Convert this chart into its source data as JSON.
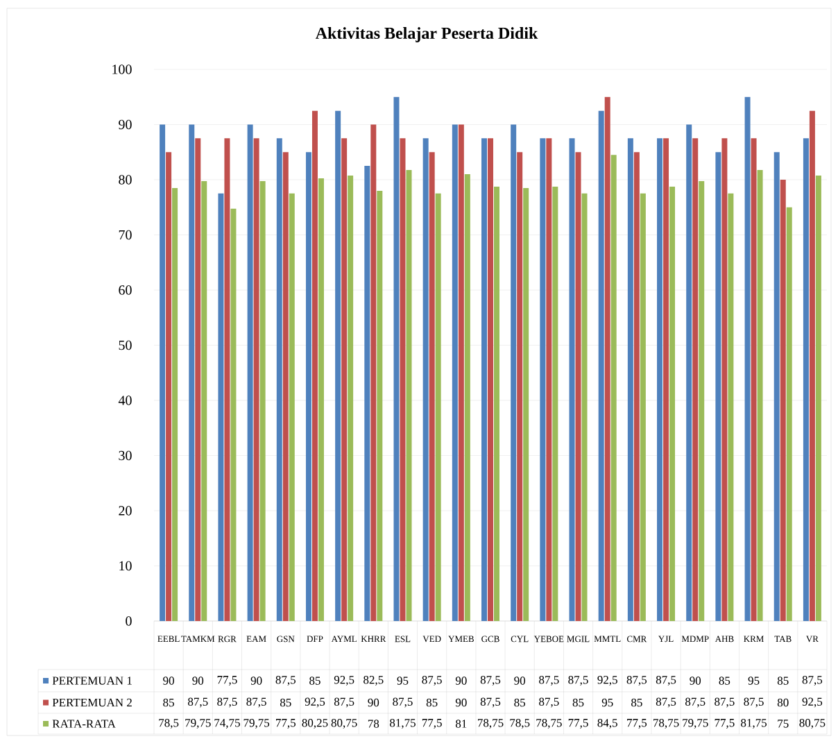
{
  "chart_data": {
    "type": "bar",
    "title": "Aktivitas Belajar Peserta Didik",
    "categories": [
      "EEBL",
      "TAMKM",
      "RGR",
      "EAM",
      "GSN",
      "DFP",
      "AYML",
      "KHRR",
      "ESL",
      "VED",
      "YMEB",
      "GCB",
      "CYL",
      "YEBOE",
      "MGIL",
      "MMTL",
      "CMR",
      "YJL",
      "MDMP",
      "AHB",
      "KRM",
      "TAB",
      "VR"
    ],
    "series": [
      {
        "name": "PERTEMUAN 1",
        "color": "#4f81bd",
        "values": [
          90,
          90,
          77.5,
          90,
          87.5,
          85,
          92.5,
          82.5,
          95,
          87.5,
          90,
          87.5,
          90,
          87.5,
          87.5,
          92.5,
          87.5,
          87.5,
          90,
          85,
          95,
          85,
          87.5
        ],
        "value_labels": [
          "90",
          "90",
          "77,5",
          "90",
          "87,5",
          "85",
          "92,5",
          "82,5",
          "95",
          "87,5",
          "90",
          "87,5",
          "90",
          "87,5",
          "87,5",
          "92,5",
          "87,5",
          "87,5",
          "90",
          "85",
          "95",
          "85",
          "87,5"
        ]
      },
      {
        "name": "PERTEMUAN 2",
        "color": "#c0504d",
        "values": [
          85,
          87.5,
          87.5,
          87.5,
          85,
          92.5,
          87.5,
          90,
          87.5,
          85,
          90,
          87.5,
          85,
          87.5,
          85,
          95,
          85,
          87.5,
          87.5,
          87.5,
          87.5,
          80,
          92.5
        ],
        "value_labels": [
          "85",
          "87,5",
          "87,5",
          "87,5",
          "85",
          "92,5",
          "87,5",
          "90",
          "87,5",
          "85",
          "90",
          "87,5",
          "85",
          "87,5",
          "85",
          "95",
          "85",
          "87,5",
          "87,5",
          "87,5",
          "87,5",
          "80",
          "92,5"
        ]
      },
      {
        "name": "RATA-RATA",
        "color": "#9bbb59",
        "values": [
          78.5,
          79.75,
          74.75,
          79.75,
          77.5,
          80.25,
          80.75,
          78,
          81.75,
          77.5,
          81,
          78.75,
          78.5,
          78.75,
          77.5,
          84.5,
          77.5,
          78.75,
          79.75,
          77.5,
          81.75,
          75,
          80.75
        ],
        "value_labels": [
          "78,5",
          "79,75",
          "74,75",
          "79,75",
          "77,5",
          "80,25",
          "80,75",
          "78",
          "81,75",
          "77,5",
          "81",
          "78,75",
          "78,5",
          "78,75",
          "77,5",
          "84,5",
          "77,5",
          "78,75",
          "79,75",
          "77,5",
          "81,75",
          "75",
          "80,75"
        ]
      }
    ],
    "ylim": [
      0,
      100
    ],
    "yticks": [
      0,
      10,
      20,
      30,
      40,
      50,
      60,
      70,
      80,
      90,
      100
    ],
    "grid": "y",
    "legend": "bottom"
  }
}
